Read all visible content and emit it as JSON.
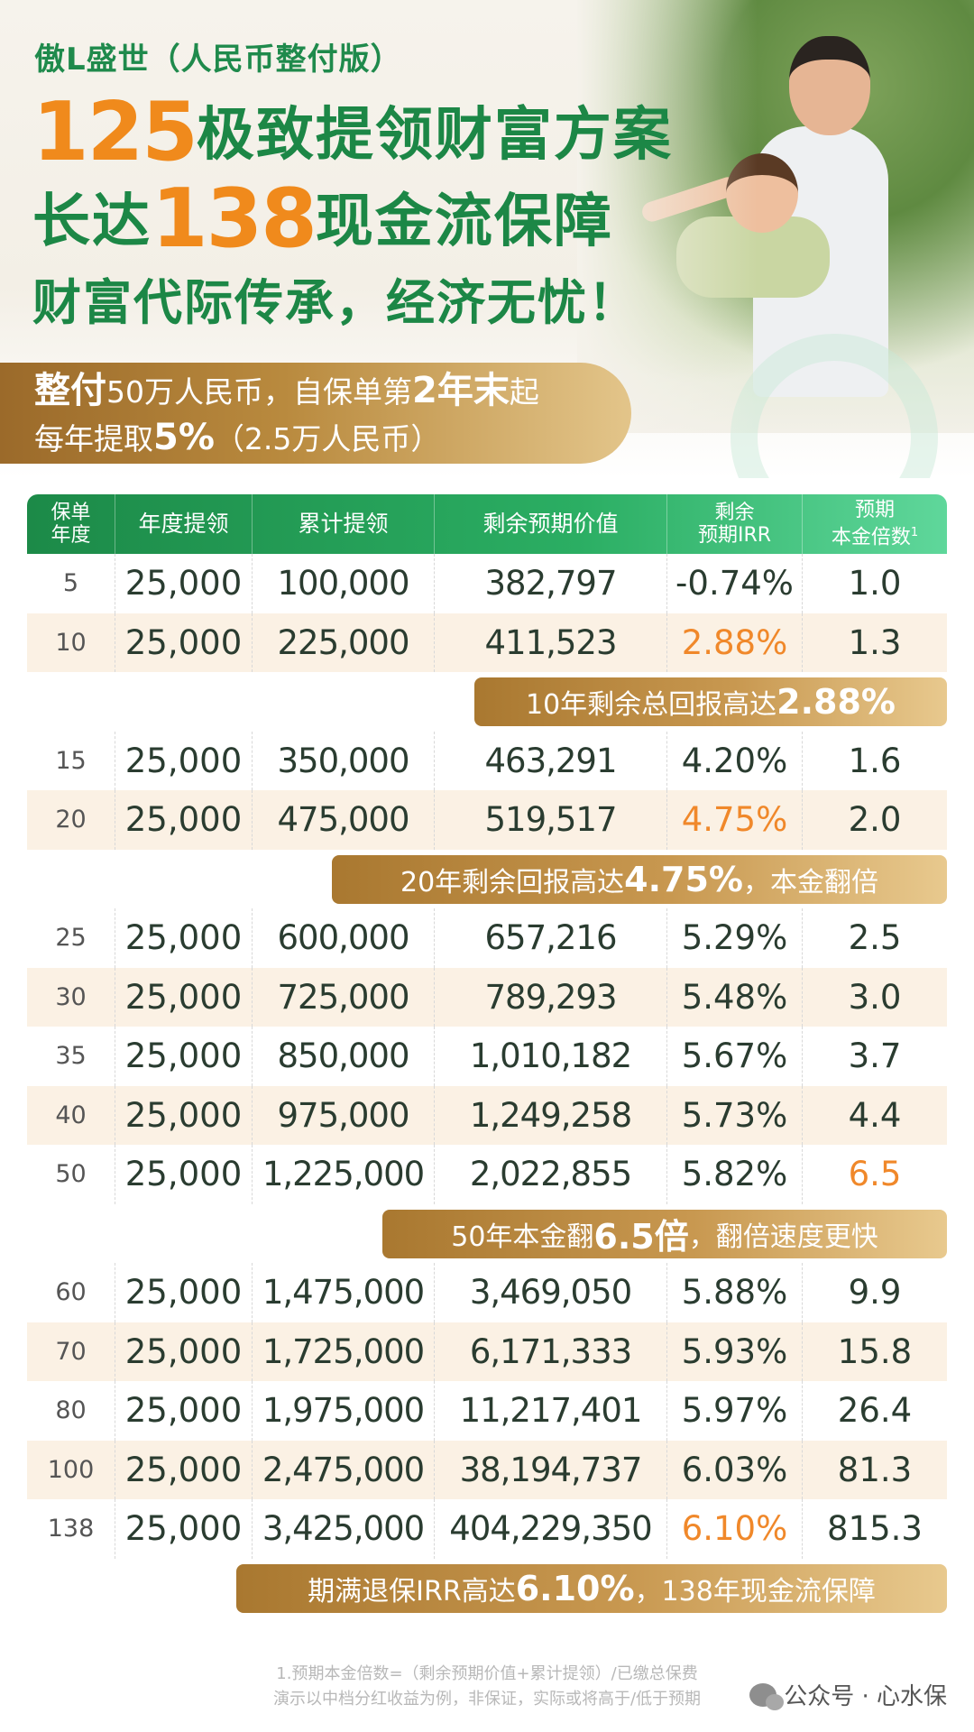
{
  "product_name": "傲L盛世（人民币整付版）",
  "headline": {
    "line1_num": "125",
    "line1_text": "极致提领财富方案",
    "line2_prefix": "长达",
    "line2_num": "138",
    "line2_text": "现金流保障",
    "line3": "财富代际传承，经济无忧！"
  },
  "plan": {
    "l1_a": "整付",
    "l1_b": "50万人民币，自保单第",
    "l1_c": "2年末",
    "l1_d": "起",
    "l2_a": "每年提取",
    "l2_b": "5%",
    "l2_c": "（2.5万人民币）"
  },
  "table": {
    "headers": {
      "year_l1": "保单",
      "year_l2": "年度",
      "annual": "年度提领",
      "cumulative": "累计提领",
      "remaining": "剩余预期价值",
      "irr_l1": "剩余",
      "irr_l2": "预期IRR",
      "multiple_l1": "预期",
      "multiple_l2": "本金倍数",
      "multiple_sup": "1"
    },
    "rows": [
      {
        "year": "5",
        "annual": "25,000",
        "cumulative": "100,000",
        "remaining": "382,797",
        "irr": "-0.74%",
        "multiple": "1.0"
      },
      {
        "year": "10",
        "annual": "25,000",
        "cumulative": "225,000",
        "remaining": "411,523",
        "irr": "2.88%",
        "multiple": "1.3"
      },
      {
        "year": "15",
        "annual": "25,000",
        "cumulative": "350,000",
        "remaining": "463,291",
        "irr": "4.20%",
        "multiple": "1.6"
      },
      {
        "year": "20",
        "annual": "25,000",
        "cumulative": "475,000",
        "remaining": "519,517",
        "irr": "4.75%",
        "multiple": "2.0"
      },
      {
        "year": "25",
        "annual": "25,000",
        "cumulative": "600,000",
        "remaining": "657,216",
        "irr": "5.29%",
        "multiple": "2.5"
      },
      {
        "year": "30",
        "annual": "25,000",
        "cumulative": "725,000",
        "remaining": "789,293",
        "irr": "5.48%",
        "multiple": "3.0"
      },
      {
        "year": "35",
        "annual": "25,000",
        "cumulative": "850,000",
        "remaining": "1,010,182",
        "irr": "5.67%",
        "multiple": "3.7"
      },
      {
        "year": "40",
        "annual": "25,000",
        "cumulative": "975,000",
        "remaining": "1,249,258",
        "irr": "5.73%",
        "multiple": "4.4"
      },
      {
        "year": "50",
        "annual": "25,000",
        "cumulative": "1,225,000",
        "remaining": "2,022,855",
        "irr": "5.82%",
        "multiple": "6.5"
      },
      {
        "year": "60",
        "annual": "25,000",
        "cumulative": "1,475,000",
        "remaining": "3,469,050",
        "irr": "5.88%",
        "multiple": "9.9"
      },
      {
        "year": "70",
        "annual": "25,000",
        "cumulative": "1,725,000",
        "remaining": "6,171,333",
        "irr": "5.93%",
        "multiple": "15.8"
      },
      {
        "year": "80",
        "annual": "25,000",
        "cumulative": "1,975,000",
        "remaining": "11,217,401",
        "irr": "5.97%",
        "multiple": "26.4"
      },
      {
        "year": "100",
        "annual": "25,000",
        "cumulative": "2,475,000",
        "remaining": "38,194,737",
        "irr": "6.03%",
        "multiple": "81.3"
      },
      {
        "year": "138",
        "annual": "25,000",
        "cumulative": "3,425,000",
        "remaining": "404,229,350",
        "irr": "6.10%",
        "multiple": "815.3"
      }
    ]
  },
  "callouts": {
    "c10_a": "10年剩余总回报高达",
    "c10_b": "2.88%",
    "c20_a": "20年剩余回报高达",
    "c20_b": "4.75%",
    "c20_c": "，本金翻倍",
    "c50_a": "50年本金翻",
    "c50_b": "6.5倍",
    "c50_c": "，翻倍速度更快",
    "c138_a": "期满退保IRR高达",
    "c138_b": "6.10%",
    "c138_c": "，138年现金流保障"
  },
  "footnotes": {
    "line1": "1.预期本金倍数=（剩余预期价值+累计提领）/已缴总保费",
    "line2": "演示以中档分红收益为例，非保证，实际或将高于/低于预期"
  },
  "watermark": {
    "icon": "wechat-icon",
    "text": "公众号 · 心水保"
  },
  "colors": {
    "brand_green": "#1c8746",
    "accent_orange": "#f08a1c",
    "gold": "#b98a3e",
    "row_shade": "#fbf1e4"
  }
}
